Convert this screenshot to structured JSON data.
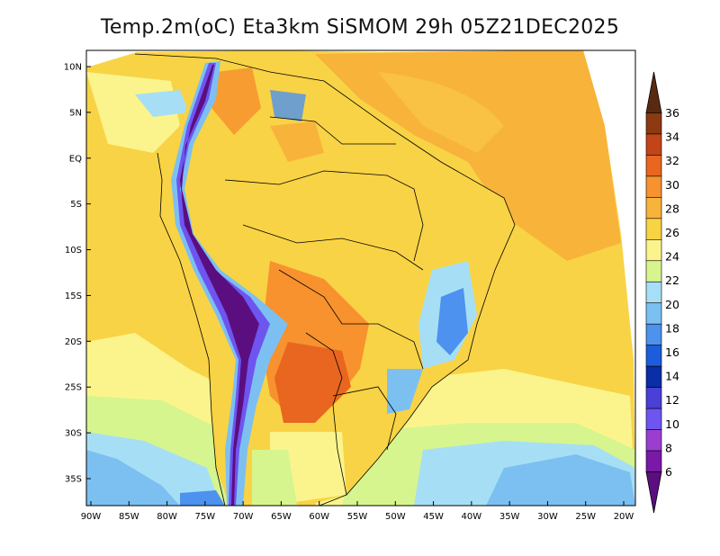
{
  "title": "Temp.2m(oC) Eta3km SiSMOM 29h 05Z21DEC2025",
  "map": {
    "lat_labels": [
      "10N",
      "5N",
      "EQ",
      "5S",
      "10S",
      "15S",
      "20S",
      "25S",
      "30S",
      "35S"
    ],
    "lon_labels": [
      "90W",
      "85W",
      "80W",
      "75W",
      "70W",
      "65W",
      "60W",
      "55W",
      "50W",
      "45W",
      "40W",
      "35W",
      "30W",
      "25W",
      "20W"
    ],
    "lat_values": [
      10,
      5,
      0,
      -5,
      -10,
      -15,
      -20,
      -25,
      -30,
      -35
    ],
    "lon_values": [
      -90,
      -85,
      -80,
      -75,
      -70,
      -65,
      -60,
      -55,
      -50,
      -45,
      -40,
      -35,
      -30,
      -25,
      -20
    ]
  },
  "colorbar": {
    "labels": [
      "36",
      "34",
      "32",
      "30",
      "28",
      "26",
      "24",
      "22",
      "20",
      "18",
      "16",
      "14",
      "12",
      "10",
      "8",
      "6"
    ],
    "colors": [
      "#5a2a10",
      "#8b3a12",
      "#c2451a",
      "#e8661f",
      "#f7922e",
      "#f8b33a",
      "#f8d345",
      "#fbf48c",
      "#d6f58e",
      "#a6dff5",
      "#7cc0f2",
      "#4c92ee",
      "#1b5ddb",
      "#0a2da8",
      "#4a3fd6",
      "#6e55f0",
      "#9b3ed0",
      "#7a18a8",
      "#5a0e80"
    ]
  }
}
